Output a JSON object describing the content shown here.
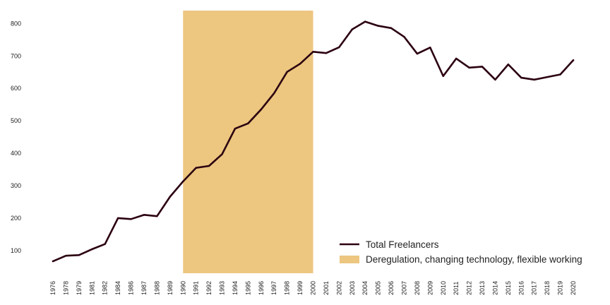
{
  "chart_data": {
    "type": "line",
    "title": "",
    "xlabel": "",
    "ylabel": "",
    "ylim": [
      30,
      840
    ],
    "yticks": [
      100,
      200,
      300,
      400,
      500,
      600,
      700,
      800
    ],
    "grid": false,
    "legend_position": "bottom-right",
    "x": [
      "1976",
      "1978",
      "1979",
      "1981",
      "1982",
      "1984",
      "1986",
      "1987",
      "1988",
      "1989",
      "1990",
      "1991",
      "1992",
      "1993",
      "1994",
      "1995",
      "1996",
      "1997",
      "1998",
      "1999",
      "2000",
      "2001",
      "2002",
      "2003",
      "2004",
      "2005",
      "2006",
      "2007",
      "2008",
      "2009",
      "2010",
      "2011",
      "2012",
      "2013",
      "2014",
      "2015",
      "2016",
      "2017",
      "2018",
      "2019",
      "2020"
    ],
    "series": [
      {
        "name": "Total Freelancers",
        "color": "#2b0010",
        "values": [
          67,
          84,
          86,
          104,
          120,
          200,
          197,
          210,
          206,
          266,
          313,
          355,
          361,
          397,
          476,
          492,
          535,
          585,
          651,
          676,
          713,
          709,
          727,
          782,
          806,
          793,
          786,
          759,
          707,
          726,
          638,
          692,
          664,
          667,
          627,
          674,
          633,
          627,
          635,
          643,
          687
        ]
      }
    ],
    "shaded_region": {
      "label": "Deregulation, changing technology, flexible working",
      "x_start": "1990",
      "x_end": "2000",
      "color": "#edc680"
    }
  }
}
